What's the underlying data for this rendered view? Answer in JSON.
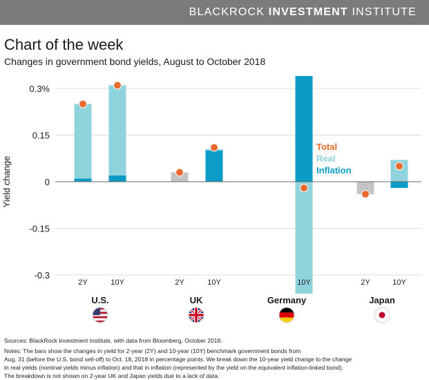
{
  "header": {
    "brand_regular": "BLACKROCK",
    "brand_bold": "INVESTMENT",
    "brand_regular2": "INSTITUTE"
  },
  "colors": {
    "real": "#8fd3dc",
    "inflation": "#0a9cc6",
    "total": "#e8692d",
    "no_breakdown": "#c4c4c4",
    "brand_bar": "#7b7b7b"
  },
  "chart_data": {
    "type": "bar",
    "title": "Chart of the week",
    "subtitle": "Changes in government bond yields, August to October 2018",
    "ylabel": "Yield change",
    "ylim": [
      -0.36,
      0.36
    ],
    "yticks": [
      {
        "value": 0.3,
        "label": "0.3%"
      },
      {
        "value": 0.15,
        "label": "0.15"
      },
      {
        "value": 0,
        "label": "0"
      },
      {
        "value": -0.15,
        "label": "-0.15"
      },
      {
        "value": -0.3,
        "label": "-0.3"
      }
    ],
    "legend": [
      "Total",
      "Real",
      "Inflation"
    ],
    "legend_position": "right",
    "groups": [
      {
        "country": "U.S.",
        "flag": "us-flag-icon",
        "bars": [
          {
            "label": "2Y",
            "real": 0.24,
            "inflation": 0.01,
            "total": 0.25
          },
          {
            "label": "10Y",
            "real": 0.29,
            "inflation": 0.02,
            "total": 0.31
          }
        ]
      },
      {
        "country": "UK",
        "flag": "uk-flag-icon",
        "bars": [
          {
            "label": "2Y",
            "real": null,
            "inflation": null,
            "total": 0.03
          },
          {
            "label": "10Y",
            "real": 0.005,
            "inflation": 0.1,
            "total": 0.11
          }
        ]
      },
      {
        "country": "Germany",
        "flag": "germany-flag-icon",
        "bars": [
          {
            "label": "",
            "real": null,
            "inflation": null,
            "total": null
          },
          {
            "label": "10Y",
            "real": -0.36,
            "inflation": 0.34,
            "total": -0.02
          }
        ]
      },
      {
        "country": "Japan",
        "flag": "japan-flag-icon",
        "bars": [
          {
            "label": "2Y",
            "real": null,
            "inflation": null,
            "total": -0.04
          },
          {
            "label": "10Y",
            "real": 0.07,
            "inflation": -0.02,
            "total": 0.05
          }
        ]
      }
    ]
  },
  "notes": {
    "sources": "Sources: BlackRock Investment Institute, with data from Bloomberg, October 2018.",
    "line1": "Notes: The bars show the changes in yield for 2-year (2Y) and 10-year (10Y) benchmark government bonds from",
    "line2": "Aug. 31 (before the U.S. bond sell-off) to Oct. 18, 2018 in percentage points. We break down the 10-year yield change to the change",
    "line3": "in real yields (nominal yields minus inflation) and that in inflation (represented by the yield on the equivalent inflation-linked bond).",
    "line4": "The breakdown is not shown on 2-year UK and Japan yields due to a lack of data."
  }
}
